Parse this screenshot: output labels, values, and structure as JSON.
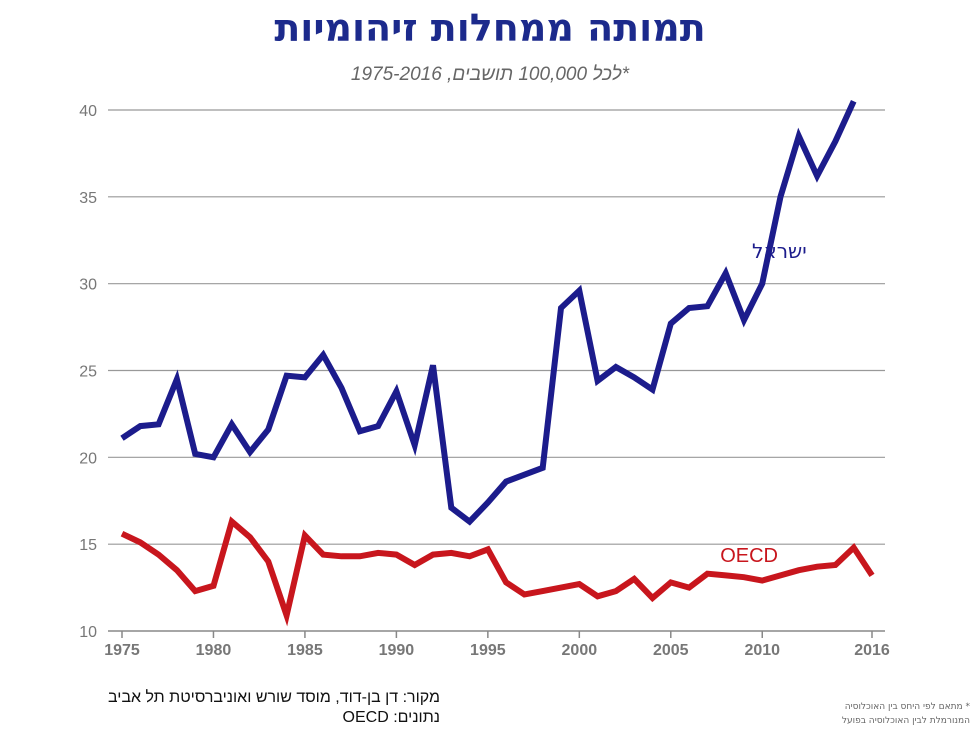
{
  "chart_data": {
    "type": "line",
    "title": "תמותה ממחלות זיהומיות",
    "subtitle": "לכל 100,000 תושבים, 1975-2016*",
    "xlabel": "",
    "ylabel": "",
    "xlim": [
      1975,
      2016
    ],
    "ylim": [
      10,
      40
    ],
    "x_ticks": [
      1975,
      1980,
      1985,
      1990,
      1995,
      2000,
      2005,
      2010,
      2016
    ],
    "y_ticks": [
      10,
      15,
      20,
      25,
      30,
      35,
      40
    ],
    "grid": true,
    "x": [
      1975,
      1976,
      1977,
      1978,
      1979,
      1980,
      1981,
      1982,
      1983,
      1984,
      1985,
      1986,
      1987,
      1988,
      1989,
      1990,
      1991,
      1992,
      1993,
      1994,
      1995,
      1996,
      1997,
      1998,
      1999,
      2000,
      2001,
      2002,
      2003,
      2004,
      2005,
      2006,
      2007,
      2008,
      2009,
      2010,
      2011,
      2012,
      2013,
      2014,
      2015,
      2016
    ],
    "series": [
      {
        "name": "ישראל",
        "color": "#1c1c8c",
        "values": [
          21.1,
          21.8,
          21.9,
          24.5,
          20.2,
          20.0,
          21.9,
          20.3,
          21.6,
          24.7,
          24.6,
          25.9,
          24.0,
          21.5,
          21.8,
          23.8,
          20.7,
          25.3,
          17.1,
          16.3,
          17.4,
          18.6,
          19.0,
          19.4,
          28.6,
          29.6,
          24.4,
          25.2,
          24.6,
          23.9,
          27.7,
          28.6,
          28.7,
          30.6,
          27.9,
          30.0,
          35.0,
          38.5,
          36.2,
          38.2,
          40.5,
          null
        ]
      },
      {
        "name": "OECD",
        "color": "#c8161d",
        "values": [
          15.6,
          15.1,
          14.4,
          13.5,
          12.3,
          12.6,
          16.3,
          15.4,
          14.0,
          10.9,
          15.5,
          14.4,
          14.3,
          14.3,
          14.5,
          14.4,
          13.8,
          14.4,
          14.5,
          14.3,
          14.7,
          12.8,
          12.1,
          12.3,
          12.5,
          12.7,
          12.0,
          12.3,
          13.0,
          11.9,
          12.8,
          12.5,
          13.3,
          13.2,
          13.1,
          12.9,
          13.2,
          13.5,
          13.7,
          13.8,
          14.8,
          13.2
        ]
      }
    ]
  },
  "source": {
    "line1": "מקור: דן בן-דוד, מוסד שורש ואוניברסיטת תל אביב",
    "line2": "נתונים: OECD"
  },
  "footnote": {
    "line1": "* מתאם לפי היחס בין האוכלוסיה",
    "line2": "המנורמלת לבין האוכלוסיה בפועל"
  }
}
